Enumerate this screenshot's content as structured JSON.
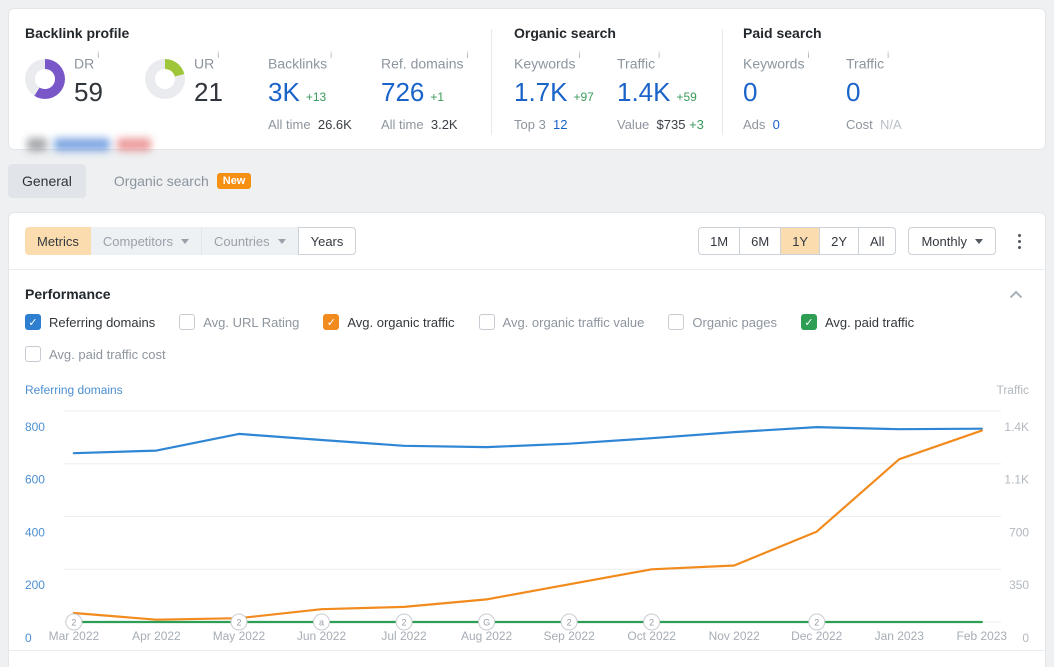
{
  "header": {
    "backlink_profile": {
      "title": "Backlink profile",
      "dr": {
        "label": "DR",
        "value": "59",
        "percent": 59,
        "color": "#7a57c9"
      },
      "ur": {
        "label": "UR",
        "value": "21",
        "percent": 21,
        "color": "#9fc63b"
      },
      "backlinks": {
        "label": "Backlinks",
        "value": "3K",
        "delta": "+13",
        "alltime_label": "All time",
        "alltime_value": "26.6K"
      },
      "ref_domains": {
        "label": "Ref. domains",
        "value": "726",
        "delta": "+1",
        "alltime_label": "All time",
        "alltime_value": "3.2K"
      }
    },
    "organic_search": {
      "title": "Organic search",
      "keywords": {
        "label": "Keywords",
        "value": "1.7K",
        "delta": "+97",
        "sub_label": "Top 3",
        "sub_value": "12"
      },
      "traffic": {
        "label": "Traffic",
        "value": "1.4K",
        "delta": "+59",
        "sub_label": "Value",
        "sub_value": "$735",
        "sub_delta": "+3"
      }
    },
    "paid_search": {
      "title": "Paid search",
      "keywords": {
        "label": "Keywords",
        "value": "0",
        "sub_label": "Ads",
        "sub_value": "0"
      },
      "traffic": {
        "label": "Traffic",
        "value": "0",
        "sub_label": "Cost",
        "sub_value": "N/A"
      }
    }
  },
  "tabs": [
    {
      "label": "General",
      "active": true
    },
    {
      "label": "Organic search",
      "active": false,
      "badge": "New"
    }
  ],
  "toolbar": {
    "metrics_label": "Metrics",
    "competitors_label": "Competitors",
    "countries_label": "Countries",
    "years_label": "Years",
    "ranges": [
      "1M",
      "6M",
      "1Y",
      "2Y",
      "All"
    ],
    "active_range": "1Y",
    "granularity_label": "Monthly"
  },
  "performance": {
    "title": "Performance",
    "checkbox_rows": [
      [
        {
          "label": "Referring domains",
          "checked": true,
          "color": "#2e7fd0"
        },
        {
          "label": "Avg. URL Rating",
          "checked": false
        },
        {
          "label": "Avg. organic traffic",
          "checked": true,
          "color": "#f28b1e"
        },
        {
          "label": "Avg. organic traffic value",
          "checked": false
        },
        {
          "label": "Organic pages",
          "checked": false
        },
        {
          "label": "Avg. paid traffic",
          "checked": true,
          "color": "#2d9e54"
        }
      ],
      [
        {
          "label": "Avg. paid traffic cost",
          "checked": false
        }
      ]
    ]
  },
  "chart_data": {
    "type": "line",
    "x": [
      "Mar 2022",
      "Apr 2022",
      "May 2022",
      "Jun 2022",
      "Jul 2022",
      "Aug 2022",
      "Sep 2022",
      "Oct 2022",
      "Nov 2022",
      "Dec 2022",
      "Jan 2023",
      "Feb 2023"
    ],
    "left_axis": {
      "label": "Referring domains",
      "ticks": [
        "800",
        "600",
        "400",
        "200",
        "0"
      ],
      "max": 800,
      "color": "#4d8fd1"
    },
    "right_axis": {
      "label": "Traffic",
      "ticks": [
        "1.4K",
        "1.1K",
        "700",
        "350",
        "0"
      ],
      "max": 1400,
      "color": "#b3b9c0"
    },
    "grid": true,
    "legend_position": "none",
    "series": [
      {
        "name": "Referring domains",
        "axis": "left",
        "color": "#2f86d4",
        "values": [
          640,
          650,
          713,
          690,
          668,
          663,
          676,
          697,
          720,
          739,
          731,
          733
        ]
      },
      {
        "name": "Avg. organic traffic",
        "axis": "right",
        "color": "#f28b1e",
        "values": [
          60,
          15,
          25,
          85,
          100,
          150,
          250,
          350,
          375,
          600,
          1080,
          1270
        ]
      },
      {
        "name": "Avg. paid traffic",
        "axis": "right",
        "color": "#2d9e54",
        "values": [
          0,
          0,
          0,
          0,
          0,
          0,
          0,
          0,
          0,
          0,
          0,
          0
        ]
      }
    ],
    "events": [
      {
        "x": "Mar 2022",
        "glyph": "2"
      },
      {
        "x": "May 2022",
        "glyph": "2"
      },
      {
        "x": "Jun 2022",
        "glyph": "a"
      },
      {
        "x": "Jul 2022",
        "glyph": "2"
      },
      {
        "x": "Aug 2022",
        "glyph": "G"
      },
      {
        "x": "Sep 2022",
        "glyph": "2"
      },
      {
        "x": "Oct 2022",
        "glyph": "2"
      },
      {
        "x": "Dec 2022",
        "glyph": "2"
      }
    ]
  }
}
